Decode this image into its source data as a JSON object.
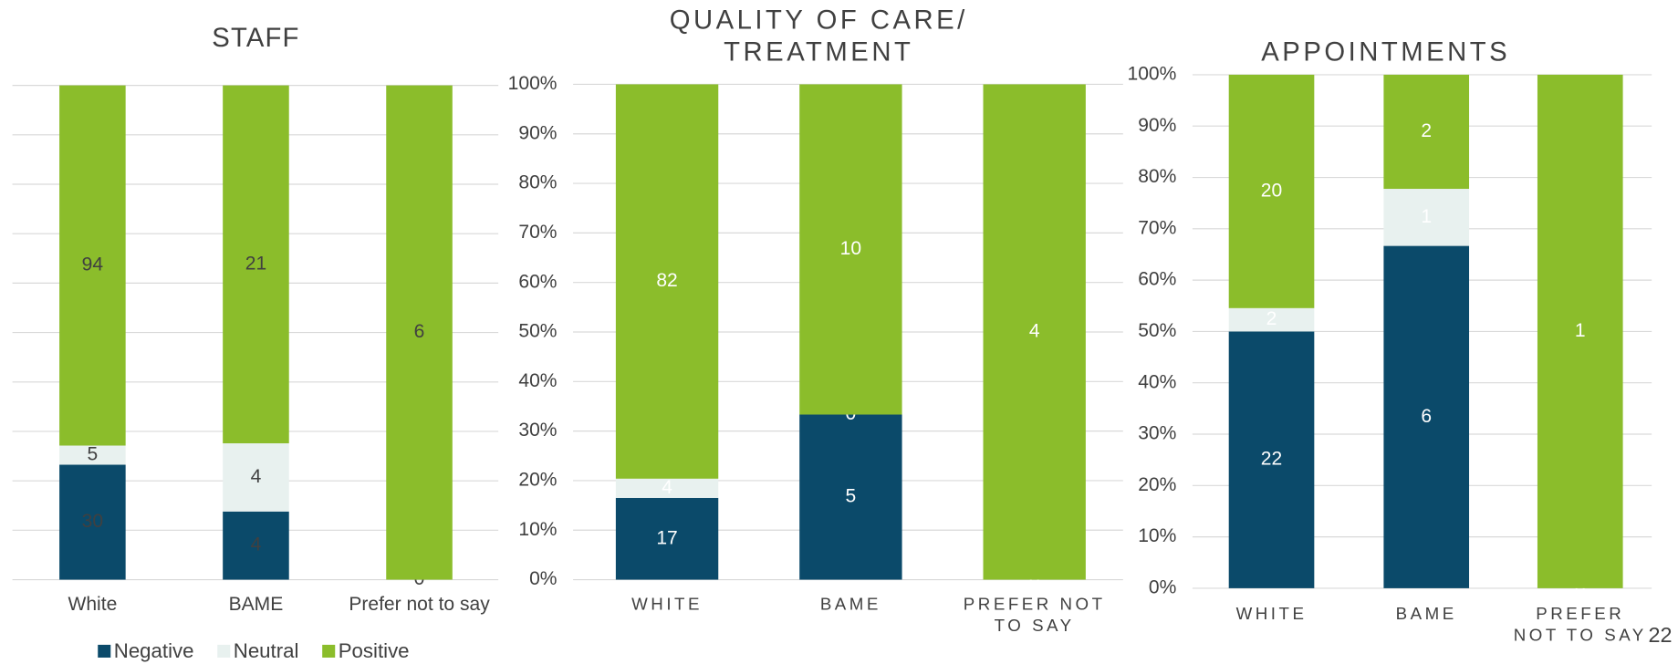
{
  "chart_data": [
    {
      "type": "stacked100",
      "title": "STAFF",
      "categories": [
        "White",
        "BAME",
        "Prefer not to say"
      ],
      "series": [
        {
          "name": "Negative",
          "color": "#0b4a6a",
          "values": [
            30,
            4,
            0
          ]
        },
        {
          "name": "Neutral",
          "color": "#e8f1ef",
          "values": [
            5,
            4,
            null
          ]
        },
        {
          "name": "Positive",
          "color": "#8bbd2b",
          "values": [
            94,
            21,
            6
          ]
        }
      ],
      "ylim": [
        0,
        100
      ],
      "yticks": [
        0,
        10,
        20,
        30,
        40,
        50,
        60,
        70,
        80,
        90,
        100
      ],
      "show_ytick_labels": false,
      "grid": true,
      "label_color": "#404040",
      "legend": "bottom"
    },
    {
      "type": "stacked100",
      "title": "QUALITY OF CARE/\nTREATMENT",
      "categories": [
        "WHITE",
        "BAME",
        "PREFER NOT\nTO SAY"
      ],
      "series": [
        {
          "name": "Negative",
          "color": "#0b4a6a",
          "values": [
            17,
            5,
            0
          ]
        },
        {
          "name": "Neutral",
          "color": "#e8f1ef",
          "values": [
            4,
            0,
            null
          ]
        },
        {
          "name": "Positive",
          "color": "#8bbd2b",
          "values": [
            82,
            10,
            4
          ]
        }
      ],
      "ylim": [
        0,
        100
      ],
      "yticks": [
        {
          "value": 0,
          "label": "0%"
        },
        {
          "value": 10,
          "label": "10%"
        },
        {
          "value": 20,
          "label": "20%"
        },
        {
          "value": 30,
          "label": "30%"
        },
        {
          "value": 40,
          "label": "40%"
        },
        {
          "value": 50,
          "label": "50%"
        },
        {
          "value": 60,
          "label": "60%"
        },
        {
          "value": 70,
          "label": "70%"
        },
        {
          "value": 80,
          "label": "80%"
        },
        {
          "value": 90,
          "label": "90%"
        },
        {
          "value": 100,
          "label": "100%"
        }
      ],
      "show_ytick_labels": true,
      "grid": true,
      "label_color": "#ffffff"
    },
    {
      "type": "stacked100",
      "title": "APPOINTMENTS",
      "categories": [
        "WHITE",
        "BAME",
        "PREFER\nNOT TO SAY"
      ],
      "series": [
        {
          "name": "Negative",
          "color": "#0b4a6a",
          "values": [
            22,
            6,
            0
          ]
        },
        {
          "name": "Neutral",
          "color": "#e8f1ef",
          "values": [
            2,
            1,
            null
          ]
        },
        {
          "name": "Positive",
          "color": "#8bbd2b",
          "values": [
            20,
            2,
            1
          ]
        }
      ],
      "ylim": [
        0,
        100
      ],
      "yticks": [
        {
          "value": 0,
          "label": "0%"
        },
        {
          "value": 10,
          "label": "10%"
        },
        {
          "value": 20,
          "label": "20%"
        },
        {
          "value": 30,
          "label": "30%"
        },
        {
          "value": 40,
          "label": "40%"
        },
        {
          "value": 50,
          "label": "50%"
        },
        {
          "value": 60,
          "label": "60%"
        },
        {
          "value": 70,
          "label": "70%"
        },
        {
          "value": 80,
          "label": "80%"
        },
        {
          "value": 90,
          "label": "90%"
        },
        {
          "value": 100,
          "label": "100%"
        }
      ],
      "show_ytick_labels": true,
      "grid": true,
      "label_color": "#ffffff"
    }
  ],
  "page_number": "22"
}
